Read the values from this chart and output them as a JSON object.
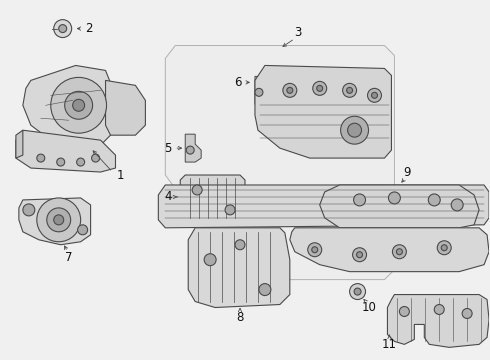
{
  "bg_color": "#f0f0f0",
  "line_color": "#4a4a4a",
  "label_color": "#111111",
  "fig_w": 4.9,
  "fig_h": 3.6,
  "dpi": 100
}
